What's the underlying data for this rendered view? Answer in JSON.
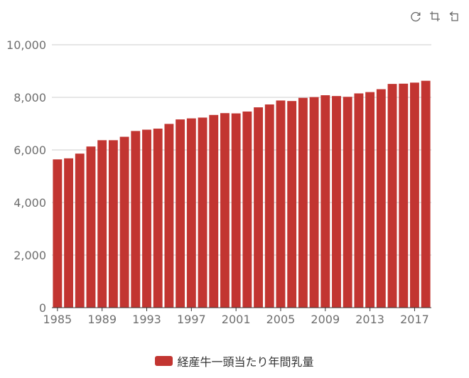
{
  "toolbox": {
    "icons": [
      "restore-icon",
      "crop-icon",
      "undo-icon"
    ]
  },
  "colors": {
    "bar": "#c23531",
    "axis": "#333333",
    "grid": "#cccccc",
    "tick_text": "#6e6e6e"
  },
  "chart_data": {
    "type": "bar",
    "title": "",
    "xlabel": "",
    "ylabel": "",
    "ylim": [
      0,
      10000
    ],
    "yticks": [
      "0",
      "2,000",
      "4,000",
      "6,000",
      "8,000",
      "10,000"
    ],
    "ytick_values": [
      0,
      2000,
      4000,
      6000,
      8000,
      10000
    ],
    "xtick_labels": [
      "1985",
      "1989",
      "1993",
      "1997",
      "2001",
      "2005",
      "2009",
      "2013",
      "2017"
    ],
    "grid": true,
    "legend_position": "bottom",
    "categories": [
      "1985",
      "1986",
      "1987",
      "1988",
      "1989",
      "1990",
      "1991",
      "1992",
      "1993",
      "1994",
      "1995",
      "1996",
      "1997",
      "1998",
      "1999",
      "2000",
      "2001",
      "2002",
      "2003",
      "2004",
      "2005",
      "2006",
      "2007",
      "2008",
      "2009",
      "2010",
      "2011",
      "2012",
      "2013",
      "2014",
      "2015",
      "2016",
      "2017",
      "2018"
    ],
    "series": [
      {
        "name": "経産牛一頭当たり年間乳量",
        "values": [
          5640,
          5680,
          5860,
          6130,
          6370,
          6370,
          6500,
          6720,
          6770,
          6810,
          6990,
          7160,
          7200,
          7230,
          7330,
          7400,
          7390,
          7460,
          7620,
          7730,
          7880,
          7860,
          7980,
          8010,
          8080,
          8050,
          8020,
          8150,
          8200,
          8310,
          8510,
          8520,
          8560,
          8630
        ]
      }
    ]
  }
}
